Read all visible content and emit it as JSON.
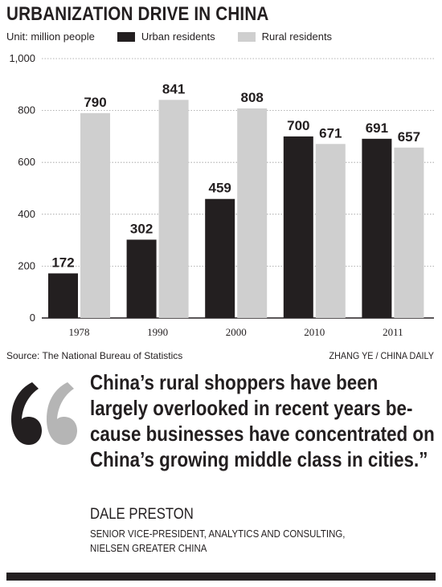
{
  "header": {
    "title": "URBANIZATION DRIVE IN CHINA",
    "unit": "Unit: million people"
  },
  "colors": {
    "urban": "#231f20",
    "rural": "#cfcfcf",
    "text": "#231f20",
    "quote_mark_dark": "#231f20",
    "quote_mark_light": "#b5b5b5"
  },
  "chart_data": {
    "type": "bar",
    "categories": [
      "1978",
      "1990",
      "2000",
      "2010",
      "2011"
    ],
    "series": [
      {
        "name": "Urban residents",
        "values": [
          172,
          302,
          459,
          700,
          691
        ],
        "labels": [
          "172",
          "302",
          "459",
          "700",
          "691"
        ]
      },
      {
        "name": "Rural residents",
        "values": [
          790,
          841,
          808,
          671,
          657
        ],
        "labels": [
          "790",
          "841",
          "808",
          "671",
          "657"
        ]
      }
    ],
    "ylim": [
      0,
      1000
    ],
    "yticks": [
      0,
      200,
      400,
      600,
      800,
      1000
    ],
    "ytick_labels": [
      "0",
      "200",
      "400",
      "600",
      "800",
      "1,000"
    ],
    "grid": true,
    "legend_placement": "top"
  },
  "footer": {
    "source": "Source: The National Bureau of Statistics",
    "credit": "ZHANG YE / CHINA DAILY"
  },
  "quote": {
    "text": "China’s rural shoppers have been largely overlooked in recent years be-cause businesses have concentrated on China’s growing middle class in cities.”",
    "author": "DALE PRESTON",
    "author_title_line1": "SENIOR VICE-PRESIDENT, ANALYTICS AND CONSULTING,",
    "author_title_line2": "NIELSEN GREATER CHINA"
  }
}
